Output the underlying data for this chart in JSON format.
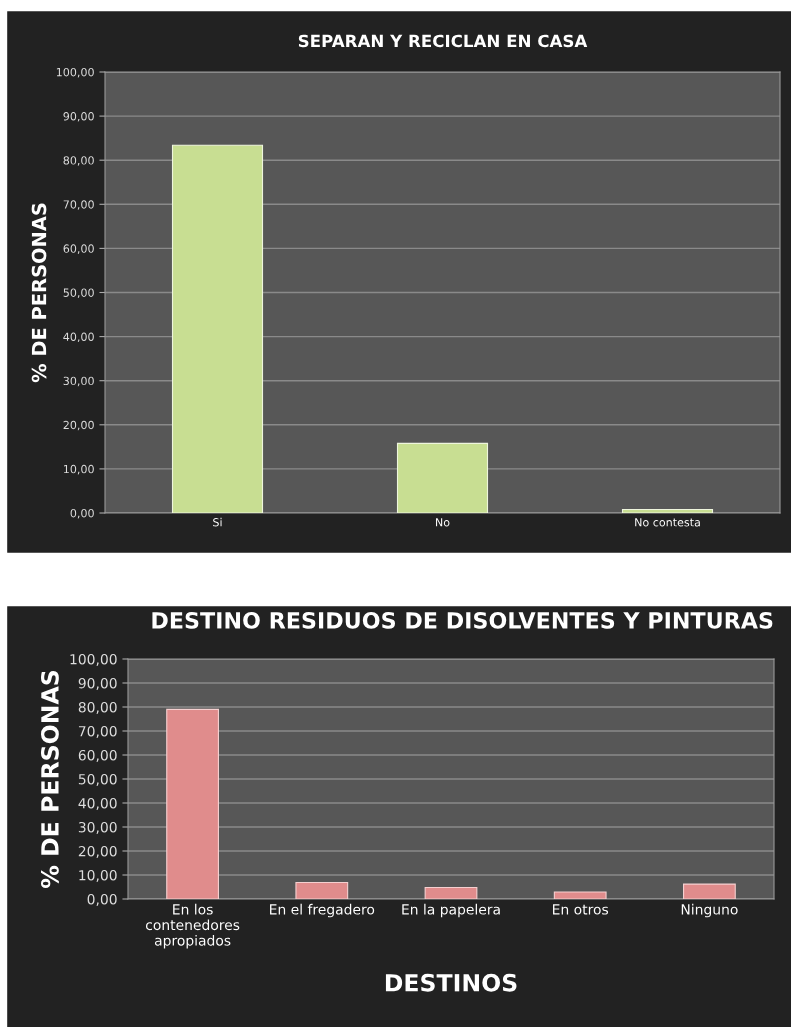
{
  "chart_data": [
    {
      "type": "bar",
      "title": "SEPARAN Y RECICLAN EN CASA",
      "ylabel": "% DE PERSONAS",
      "categories": [
        "Si",
        "No",
        "No contesta"
      ],
      "values": [
        83.4,
        15.8,
        0.8
      ],
      "color": "#c8de92",
      "ylim": [
        0,
        100
      ],
      "yticks": [
        {
          "value": 0,
          "label": "0,00"
        },
        {
          "value": 10,
          "label": "10,00"
        },
        {
          "value": 20,
          "label": "20,00"
        },
        {
          "value": 30,
          "label": "30,00"
        },
        {
          "value": 40,
          "label": "40,00"
        },
        {
          "value": 50,
          "label": "50,00"
        },
        {
          "value": 60,
          "label": "60,00"
        },
        {
          "value": 70,
          "label": "70,00"
        },
        {
          "value": 80,
          "label": "80,00"
        },
        {
          "value": 90,
          "label": "90,00"
        },
        {
          "value": 100,
          "label": "100,00"
        }
      ],
      "grid": "y",
      "legend": false
    },
    {
      "type": "bar",
      "title": "DESTINO RESIDUOS DE DISOLVENTES Y PINTURAS",
      "ylabel": "% DE PERSONAS",
      "xlabel": "DESTINOS",
      "categories": [
        "En los\ncontenedores\napropiados",
        "En el fregadero",
        "En la papelera",
        "En otros",
        "Ninguno"
      ],
      "values": [
        79.0,
        6.9,
        4.8,
        2.9,
        6.2
      ],
      "color": "#e08c8c",
      "ylim": [
        0,
        100
      ],
      "yticks": [
        {
          "value": 0,
          "label": "0,00"
        },
        {
          "value": 10,
          "label": "10,00"
        },
        {
          "value": 20,
          "label": "20,00"
        },
        {
          "value": 30,
          "label": "30,00"
        },
        {
          "value": 40,
          "label": "40,00"
        },
        {
          "value": 50,
          "label": "50,00"
        },
        {
          "value": 60,
          "label": "60,00"
        },
        {
          "value": 70,
          "label": "70,00"
        },
        {
          "value": 80,
          "label": "80,00"
        },
        {
          "value": 90,
          "label": "90,00"
        },
        {
          "value": 100,
          "label": "100,00"
        }
      ],
      "grid": "y",
      "legend": false
    }
  ]
}
